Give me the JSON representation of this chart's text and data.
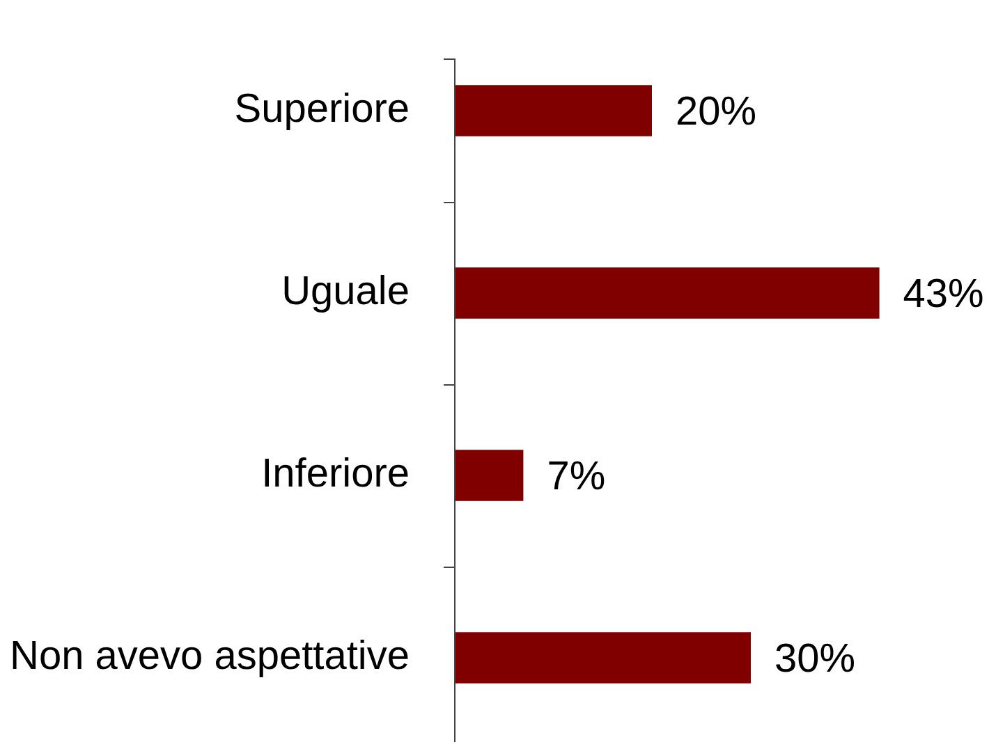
{
  "chart_data": {
    "type": "bar",
    "orientation": "horizontal",
    "categories": [
      "Superiore",
      "Uguale",
      "Inferiore",
      "Non avevo aspettative"
    ],
    "values": [
      20,
      43,
      7,
      30
    ],
    "color": "#800000",
    "value_labels": [
      "20%",
      "43%",
      "7%",
      "30%"
    ]
  }
}
